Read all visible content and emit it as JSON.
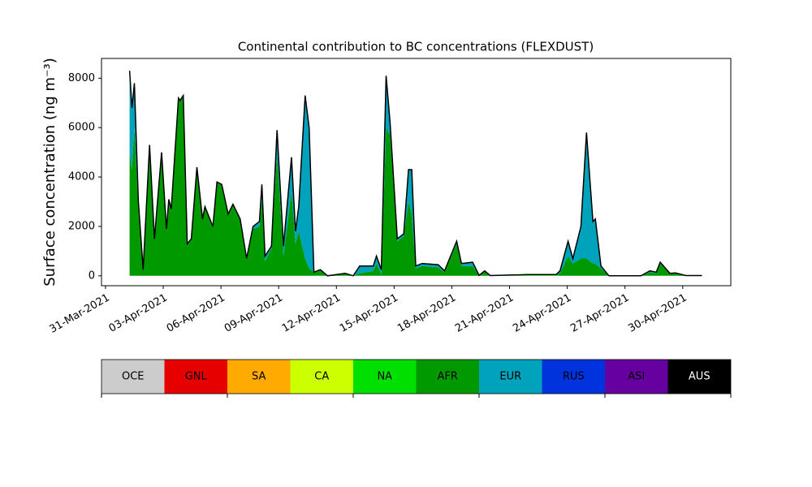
{
  "chart_data": {
    "type": "stacked-area",
    "title": "Continental contribution to BC concentrations (FLEXDUST)",
    "y_label": "Surface concentration (ng m⁻³)",
    "x": [
      "2021-04-01T06",
      "2021-04-01T09",
      "2021-04-01T12",
      "2021-04-01T17",
      "2021-04-01T23",
      "2021-04-02T07",
      "2021-04-02T13",
      "2021-04-02T22",
      "2021-04-03T04",
      "2021-04-03T07",
      "2021-04-03T10",
      "2021-04-03T19",
      "2021-04-03T21",
      "2021-04-04T01",
      "2021-04-04T06",
      "2021-04-04T11",
      "2021-04-04T18",
      "2021-04-05T01",
      "2021-04-05T04",
      "2021-04-05T14",
      "2021-04-05T19",
      "2021-04-06T01",
      "2021-04-06T09",
      "2021-04-06T15",
      "2021-04-07T00",
      "2021-04-07T08",
      "2021-04-07T16",
      "2021-04-08T00",
      "2021-04-08T03",
      "2021-04-08T07",
      "2021-04-08T15",
      "2021-04-08T22",
      "2021-04-09T06",
      "2021-04-09T16",
      "2021-04-09T21",
      "2021-04-10T01",
      "2021-04-10T09",
      "2021-04-10T14",
      "2021-04-10T20",
      "2021-04-11T04",
      "2021-04-11T13",
      "2021-04-12T11",
      "2021-04-12T21",
      "2021-04-13T05",
      "2021-04-13T22",
      "2021-04-14T02",
      "2021-04-14T08",
      "2021-04-14T14",
      "2021-04-14T19",
      "2021-04-15T04",
      "2021-04-15T12",
      "2021-04-15T18",
      "2021-04-15T22",
      "2021-04-16T03",
      "2021-04-16T11",
      "2021-04-17T07",
      "2021-04-17T15",
      "2021-04-18T06",
      "2021-04-18T12",
      "2021-04-19T02",
      "2021-04-19T10",
      "2021-04-19T17",
      "2021-04-20T00",
      "2021-04-21T23",
      "2021-04-23T10",
      "2021-04-23T15",
      "2021-04-24T01",
      "2021-04-24T07",
      "2021-04-24T17",
      "2021-04-25T00",
      "2021-04-25T08",
      "2021-04-25T11",
      "2021-04-25T18",
      "2021-04-26T04",
      "2021-04-27T20",
      "2021-04-28T07",
      "2021-04-28T15",
      "2021-04-28T20",
      "2021-04-29T08",
      "2021-04-29T15",
      "2021-04-30T04",
      "2021-05-01T00"
    ],
    "series": [
      {
        "name": "NA",
        "color": "#00e000",
        "values": [
          0,
          0,
          0,
          0,
          0,
          0,
          0,
          0,
          0,
          0,
          0,
          0,
          0,
          0,
          0,
          0,
          0,
          0,
          0,
          0,
          0,
          0,
          0,
          0,
          0,
          0,
          0,
          0,
          0,
          0,
          0,
          0,
          0,
          0,
          0,
          0,
          0,
          0,
          0,
          0,
          0,
          0,
          0,
          0,
          0,
          0,
          0,
          0,
          0,
          0,
          0,
          0,
          0,
          0,
          0,
          0,
          0,
          0,
          0,
          0,
          0,
          0,
          0,
          50,
          30,
          0,
          0,
          0,
          0,
          0,
          0,
          0,
          0,
          0,
          0,
          0,
          0,
          0,
          0,
          0,
          0,
          0
        ]
      },
      {
        "name": "AFR",
        "color": "#009a00",
        "values": [
          5000,
          4300,
          6000,
          2700,
          250,
          5000,
          1500,
          4800,
          1900,
          3100,
          2700,
          7200,
          7100,
          7300,
          1300,
          1500,
          4400,
          2300,
          2800,
          2000,
          3800,
          3700,
          2500,
          2900,
          2300,
          700,
          1900,
          2000,
          3100,
          600,
          1100,
          4900,
          800,
          3400,
          1300,
          1800,
          700,
          300,
          150,
          250,
          0,
          100,
          0,
          100,
          200,
          500,
          50,
          6000,
          5700,
          1400,
          1600,
          3000,
          2500,
          300,
          400,
          350,
          150,
          1300,
          400,
          400,
          20,
          200,
          10,
          0,
          20,
          100,
          800,
          500,
          700,
          700,
          500,
          500,
          300,
          0,
          0,
          150,
          100,
          500,
          80,
          100,
          10,
          10
        ]
      },
      {
        "name": "EUR",
        "color": "#00a2bc",
        "values": [
          3300,
          2500,
          1800,
          300,
          0,
          300,
          0,
          200,
          0,
          0,
          0,
          0,
          0,
          0,
          0,
          0,
          0,
          0,
          0,
          0,
          0,
          0,
          0,
          0,
          0,
          0,
          100,
          200,
          600,
          200,
          100,
          1000,
          400,
          1400,
          500,
          1000,
          6600,
          5700,
          0,
          0,
          0,
          0,
          0,
          300,
          200,
          300,
          200,
          2100,
          500,
          100,
          100,
          1300,
          1800,
          100,
          100,
          100,
          50,
          100,
          100,
          150,
          0,
          0,
          0,
          0,
          0,
          100,
          600,
          200,
          1300,
          5100,
          1700,
          1800,
          100,
          0,
          0,
          50,
          50,
          50,
          20,
          20,
          0,
          0
        ]
      }
    ],
    "xlim": [
      "2021-03-30T19",
      "2021-05-02T12"
    ],
    "xticks": [
      {
        "value": "2021-03-31",
        "label": "31-Mar-2021"
      },
      {
        "value": "2021-04-03",
        "label": "03-Apr-2021"
      },
      {
        "value": "2021-04-06",
        "label": "06-Apr-2021"
      },
      {
        "value": "2021-04-09",
        "label": "09-Apr-2021"
      },
      {
        "value": "2021-04-12",
        "label": "12-Apr-2021"
      },
      {
        "value": "2021-04-15",
        "label": "15-Apr-2021"
      },
      {
        "value": "2021-04-18",
        "label": "18-Apr-2021"
      },
      {
        "value": "2021-04-21",
        "label": "21-Apr-2021"
      },
      {
        "value": "2021-04-24",
        "label": "24-Apr-2021"
      },
      {
        "value": "2021-04-27",
        "label": "27-Apr-2021"
      },
      {
        "value": "2021-04-30",
        "label": "30-Apr-2021"
      }
    ],
    "ylim": [
      -400,
      8800
    ],
    "yticks": [
      0,
      2000,
      4000,
      6000,
      8000
    ],
    "colorbar": {
      "labels": [
        "OCE",
        "GNL",
        "SA",
        "CA",
        "NA",
        "AFR",
        "EUR",
        "RUS",
        "ASI",
        "AUS"
      ],
      "colors": [
        "#cccccc",
        "#e60000",
        "#ffaa00",
        "#ccff00",
        "#00e000",
        "#009a00",
        "#00a2bc",
        "#0033dd",
        "#6600a0",
        "#000000"
      ]
    }
  }
}
